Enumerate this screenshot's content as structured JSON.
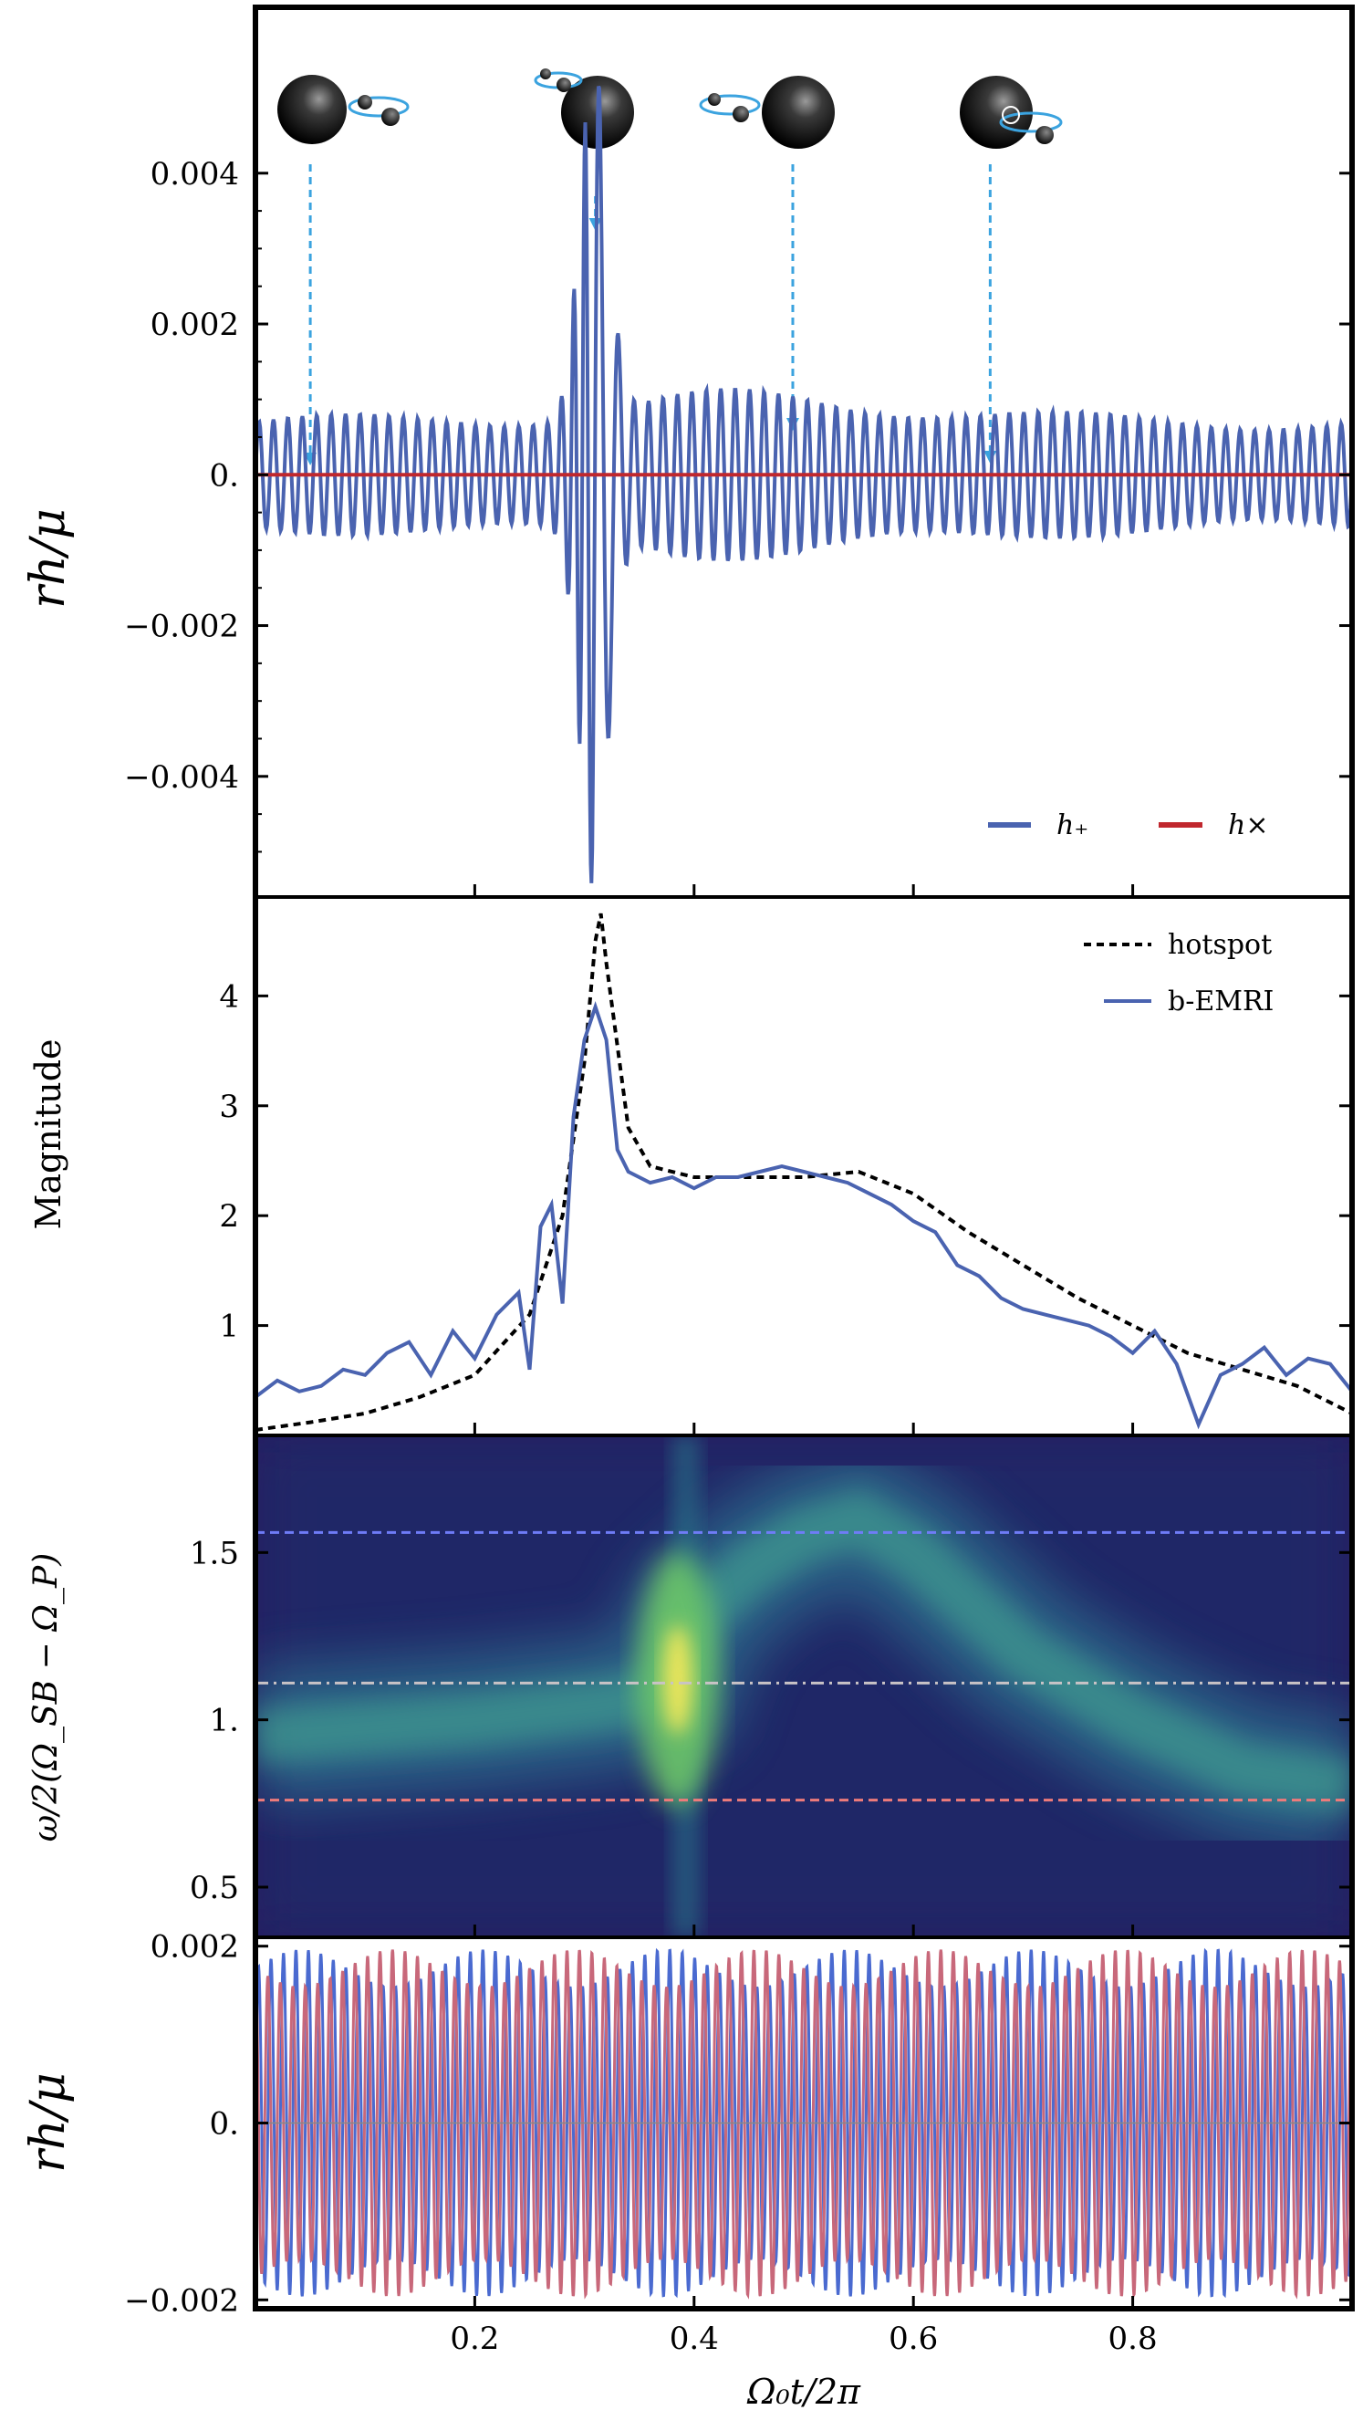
{
  "figure": {
    "x_axis_label": "Ω₀t/2π",
    "x_ticks": [
      "0.2",
      "0.4",
      "0.6",
      "0.8"
    ],
    "x_tick_values": [
      0.2,
      0.4,
      0.6,
      0.8
    ]
  },
  "colors": {
    "h_plus": "#4a63b0",
    "h_cross": "#c0272d",
    "hotspot": "#000000",
    "b_emri": "#4a63b0",
    "line_upper": "#6f7cf7",
    "line_mid": "#c9c3c6",
    "line_lower": "#ee7b7b",
    "bottom_plus": "#4a6ad0",
    "bottom_cross": "#c8687a",
    "arrow": "#3ba3df"
  },
  "chart_data": [
    {
      "type": "line",
      "panel": "waveform",
      "ylabel": "rh/μ",
      "y_ticks": [
        "0.004",
        "0.002",
        "0.",
        "−0.002",
        "−0.004"
      ],
      "y_tick_values": [
        0.004,
        0.002,
        0,
        -0.002,
        -0.004
      ],
      "ylim": [
        -0.0056,
        0.0062
      ],
      "xlim": [
        0,
        1
      ],
      "legend": [
        "h₊",
        "h×"
      ],
      "legend_position": "bottom-right",
      "series": [
        {
          "name": "h₊",
          "carrier_cycles": 76,
          "baseline_amplitude": 0.0007,
          "peak_amplitude": 0.0055,
          "peak_x": 0.308
        },
        {
          "name": "h×",
          "values_constant": 0
        }
      ],
      "annotation_x": [
        0.05,
        0.31,
        0.49,
        0.67
      ]
    },
    {
      "type": "line",
      "panel": "magnitude",
      "ylabel": "Magnitude",
      "y_ticks": [
        "1",
        "2",
        "3",
        "4"
      ],
      "y_tick_values": [
        1,
        2,
        3,
        4
      ],
      "ylim": [
        0,
        4.9
      ],
      "xlim": [
        0,
        1
      ],
      "legend": [
        "hotspot",
        "b-EMRI"
      ],
      "legend_position": "top-right",
      "series": [
        {
          "name": "hotspot",
          "x": [
            0,
            0.05,
            0.1,
            0.15,
            0.2,
            0.25,
            0.28,
            0.3,
            0.31,
            0.315,
            0.32,
            0.34,
            0.36,
            0.4,
            0.45,
            0.5,
            0.55,
            0.6,
            0.65,
            0.7,
            0.75,
            0.8,
            0.85,
            0.9,
            0.95,
            1.0
          ],
          "values": [
            0.05,
            0.12,
            0.2,
            0.35,
            0.55,
            1.1,
            2.0,
            3.4,
            4.5,
            4.75,
            4.3,
            2.8,
            2.45,
            2.35,
            2.35,
            2.35,
            2.4,
            2.2,
            1.85,
            1.55,
            1.25,
            1.0,
            0.75,
            0.6,
            0.45,
            0.2
          ]
        },
        {
          "name": "b-EMRI",
          "x": [
            0,
            0.02,
            0.04,
            0.06,
            0.08,
            0.1,
            0.12,
            0.14,
            0.16,
            0.18,
            0.2,
            0.22,
            0.24,
            0.25,
            0.26,
            0.27,
            0.28,
            0.29,
            0.3,
            0.31,
            0.32,
            0.33,
            0.34,
            0.36,
            0.38,
            0.4,
            0.42,
            0.44,
            0.46,
            0.48,
            0.5,
            0.52,
            0.54,
            0.56,
            0.58,
            0.6,
            0.62,
            0.64,
            0.66,
            0.68,
            0.7,
            0.72,
            0.74,
            0.76,
            0.78,
            0.8,
            0.82,
            0.84,
            0.86,
            0.88,
            0.9,
            0.92,
            0.94,
            0.96,
            0.98,
            1.0
          ],
          "values": [
            0.35,
            0.5,
            0.4,
            0.45,
            0.6,
            0.55,
            0.75,
            0.85,
            0.55,
            0.95,
            0.7,
            1.1,
            1.3,
            0.6,
            1.9,
            2.1,
            1.2,
            2.9,
            3.6,
            3.9,
            3.6,
            2.6,
            2.4,
            2.3,
            2.35,
            2.25,
            2.35,
            2.35,
            2.4,
            2.45,
            2.4,
            2.35,
            2.3,
            2.2,
            2.1,
            1.95,
            1.85,
            1.55,
            1.45,
            1.25,
            1.15,
            1.1,
            1.05,
            1.0,
            0.9,
            0.75,
            0.95,
            0.65,
            0.1,
            0.55,
            0.65,
            0.8,
            0.55,
            0.7,
            0.65,
            0.4
          ]
        }
      ]
    },
    {
      "type": "heatmap",
      "panel": "spectrogram",
      "ylabel": "ω/2(Ω_SB − Ω_P)",
      "y_ticks": [
        "1.5",
        "1.",
        "0.5"
      ],
      "y_tick_values": [
        1.5,
        1.0,
        0.5
      ],
      "ylim": [
        0.35,
        1.85
      ],
      "xlim": [
        0,
        1
      ],
      "horizontal_lines": [
        {
          "value": 1.56,
          "style": "dashed",
          "color_key": "line_upper"
        },
        {
          "value": 1.11,
          "style": "dash-dot",
          "color_key": "line_mid"
        },
        {
          "value": 0.76,
          "style": "dashed",
          "color_key": "line_lower"
        }
      ],
      "ridge": {
        "x": [
          0.0,
          0.2,
          0.33,
          0.38,
          0.4,
          0.45,
          0.5,
          0.55,
          0.6,
          0.7,
          0.8,
          0.9,
          1.0
        ],
        "values": [
          0.95,
          1.0,
          1.05,
          1.1,
          1.3,
          1.45,
          1.55,
          1.6,
          1.5,
          1.2,
          1.0,
          0.85,
          0.8
        ]
      },
      "hotspot_peak": {
        "x": 0.385,
        "y": 1.12
      }
    },
    {
      "type": "line",
      "panel": "waveform-zoom",
      "ylabel": "rh/μ",
      "y_ticks": [
        "0.002",
        "0.",
        "−0.002"
      ],
      "y_tick_values": [
        0.002,
        0,
        -0.002
      ],
      "ylim": [
        -0.0021,
        0.0021
      ],
      "xlim": [
        0,
        1
      ],
      "series": [
        {
          "name": "h₊",
          "amplitude": 0.00175,
          "carrier_cycles": 88
        },
        {
          "name": "h×",
          "amplitude": 0.00175,
          "carrier_cycles": 88,
          "phase_shift": "quarter-cycle"
        }
      ]
    }
  ]
}
